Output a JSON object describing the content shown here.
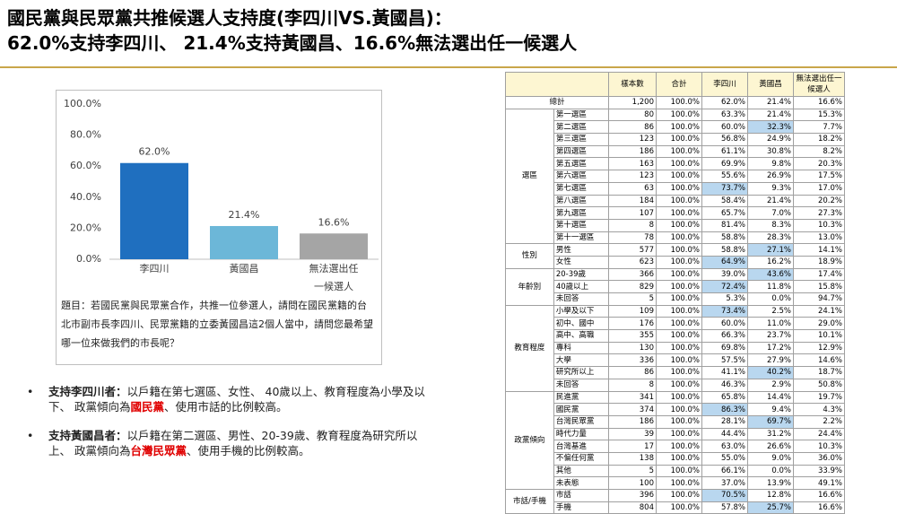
{
  "header": {
    "title_lines": [
      "國民黨與民眾黨共推候選人支持度(李四川VS.黃國昌)：",
      "62.0%支持李四川、 21.4%支持黃國昌、16.6%無法選出任一候選人"
    ]
  },
  "chart_data": {
    "type": "bar",
    "categories": [
      "李四川",
      "黃國昌",
      "無法選出任一候選人"
    ],
    "values": [
      62.0,
      21.4,
      16.6
    ],
    "value_labels": [
      "62.0%",
      "21.4%",
      "16.6%"
    ],
    "colors": [
      "#1f6fbf",
      "#6cb7d8",
      "#a5a5a5"
    ],
    "ylim": [
      0,
      100
    ],
    "yticks": [
      {
        "value": 0,
        "label": "0.0%"
      },
      {
        "value": 20,
        "label": "20.0%"
      },
      {
        "value": 40,
        "label": "40.0%"
      },
      {
        "value": 60,
        "label": "60.0%"
      },
      {
        "value": 80,
        "label": "80.0%"
      },
      {
        "value": 100,
        "label": "100.0%"
      }
    ],
    "grid": false
  },
  "question": "題目：若國民黨與民眾黨合作，共推一位參選人，請問在國民黨籍的台北市副市長李四川、民眾黨籍的立委黃國昌這2個人當中，請問您最希望哪一位來做我們的市長呢？",
  "bullets": [
    {
      "label": "支持李四川者：",
      "parts": [
        "以戶籍在第七選區、女性、 40歲以上、教育程度為小學及以下、 政黨傾向為",
        "國民黨",
        "、使用市話的比例較高。"
      ]
    },
    {
      "label": "支持黃國昌者：",
      "parts": [
        "以戶籍在第二選區、男性、20-39歲、教育程度為研究所以上、 政黨傾向為",
        "台灣民眾黨",
        "、使用手機的比例較高。"
      ]
    }
  ],
  "table": {
    "header": [
      "樣本數",
      "合計",
      "李四川",
      "黃國昌",
      "無法選出任一候選人"
    ],
    "total": [
      "總計",
      "1,200",
      "100.0%",
      "62.0%",
      "21.4%",
      "16.6%"
    ],
    "groups": [
      {
        "label": "選區",
        "rows": [
          {
            "cells": [
              "第一選區",
              "80",
              "100.0%",
              "63.3%",
              "21.4%",
              "15.3%"
            ]
          },
          {
            "cells": [
              "第二選區",
              "86",
              "100.0%",
              "60.0%",
              "32.3%",
              "7.7%"
            ],
            "highlight": 4
          },
          {
            "cells": [
              "第三選區",
              "123",
              "100.0%",
              "56.8%",
              "24.9%",
              "18.2%"
            ]
          },
          {
            "cells": [
              "第四選區",
              "186",
              "100.0%",
              "61.1%",
              "30.8%",
              "8.2%"
            ]
          },
          {
            "cells": [
              "第五選區",
              "163",
              "100.0%",
              "69.9%",
              "9.8%",
              "20.3%"
            ]
          },
          {
            "cells": [
              "第六選區",
              "123",
              "100.0%",
              "55.6%",
              "26.9%",
              "17.5%"
            ]
          },
          {
            "cells": [
              "第七選區",
              "63",
              "100.0%",
              "73.7%",
              "9.3%",
              "17.0%"
            ],
            "highlight": 3
          },
          {
            "cells": [
              "第八選區",
              "184",
              "100.0%",
              "58.4%",
              "21.4%",
              "20.2%"
            ]
          },
          {
            "cells": [
              "第九選區",
              "107",
              "100.0%",
              "65.7%",
              "7.0%",
              "27.3%"
            ]
          },
          {
            "cells": [
              "第十選區",
              "8",
              "100.0%",
              "81.4%",
              "8.3%",
              "10.3%"
            ]
          },
          {
            "cells": [
              "第十一選區",
              "78",
              "100.0%",
              "58.8%",
              "28.3%",
              "13.0%"
            ]
          }
        ]
      },
      {
        "label": "性別",
        "rows": [
          {
            "cells": [
              "男性",
              "577",
              "100.0%",
              "58.8%",
              "27.1%",
              "14.1%"
            ],
            "highlight": 4
          },
          {
            "cells": [
              "女性",
              "623",
              "100.0%",
              "64.9%",
              "16.2%",
              "18.9%"
            ],
            "highlight": 3
          }
        ]
      },
      {
        "label": "年齡別",
        "rows": [
          {
            "cells": [
              "20-39歲",
              "366",
              "100.0%",
              "39.0%",
              "43.6%",
              "17.4%"
            ],
            "highlight": 4
          },
          {
            "cells": [
              "40歲以上",
              "829",
              "100.0%",
              "72.4%",
              "11.8%",
              "15.8%"
            ],
            "highlight": 3
          },
          {
            "cells": [
              "未回答",
              "5",
              "100.0%",
              "5.3%",
              "0.0%",
              "94.7%"
            ]
          }
        ]
      },
      {
        "label": "教育程度",
        "rows": [
          {
            "cells": [
              "小學及以下",
              "109",
              "100.0%",
              "73.4%",
              "2.5%",
              "24.1%"
            ],
            "highlight": 3
          },
          {
            "cells": [
              "初中、國中",
              "176",
              "100.0%",
              "60.0%",
              "11.0%",
              "29.0%"
            ]
          },
          {
            "cells": [
              "高中、高職",
              "355",
              "100.0%",
              "66.3%",
              "23.7%",
              "10.1%"
            ]
          },
          {
            "cells": [
              "專科",
              "130",
              "100.0%",
              "69.8%",
              "17.2%",
              "12.9%"
            ]
          },
          {
            "cells": [
              "大學",
              "336",
              "100.0%",
              "57.5%",
              "27.9%",
              "14.6%"
            ]
          },
          {
            "cells": [
              "研究所以上",
              "86",
              "100.0%",
              "41.1%",
              "40.2%",
              "18.7%"
            ],
            "highlight": 4
          },
          {
            "cells": [
              "未回答",
              "8",
              "100.0%",
              "46.3%",
              "2.9%",
              "50.8%"
            ]
          }
        ]
      },
      {
        "label": "政黨傾向",
        "rows": [
          {
            "cells": [
              "民進黨",
              "341",
              "100.0%",
              "65.8%",
              "14.4%",
              "19.7%"
            ]
          },
          {
            "cells": [
              "國民黨",
              "374",
              "100.0%",
              "86.3%",
              "9.4%",
              "4.3%"
            ],
            "highlight": 3
          },
          {
            "cells": [
              "台灣民眾黨",
              "186",
              "100.0%",
              "28.1%",
              "69.7%",
              "2.2%"
            ],
            "highlight": 4
          },
          {
            "cells": [
              "時代力量",
              "39",
              "100.0%",
              "44.4%",
              "31.2%",
              "24.4%"
            ]
          },
          {
            "cells": [
              "台灣基進",
              "17",
              "100.0%",
              "63.0%",
              "26.6%",
              "10.3%"
            ]
          },
          {
            "cells": [
              "不偏任何黨",
              "138",
              "100.0%",
              "55.0%",
              "9.0%",
              "36.0%"
            ]
          },
          {
            "cells": [
              "其他",
              "5",
              "100.0%",
              "66.1%",
              "0.0%",
              "33.9%"
            ]
          },
          {
            "cells": [
              "未表態",
              "100",
              "100.0%",
              "37.0%",
              "13.9%",
              "49.1%"
            ]
          }
        ]
      },
      {
        "label": "市話/手機",
        "rows": [
          {
            "cells": [
              "市話",
              "396",
              "100.0%",
              "70.5%",
              "12.8%",
              "16.6%"
            ],
            "highlight": 3
          },
          {
            "cells": [
              "手機",
              "804",
              "100.0%",
              "57.8%",
              "25.7%",
              "16.6%"
            ],
            "highlight": 4
          }
        ]
      }
    ]
  }
}
